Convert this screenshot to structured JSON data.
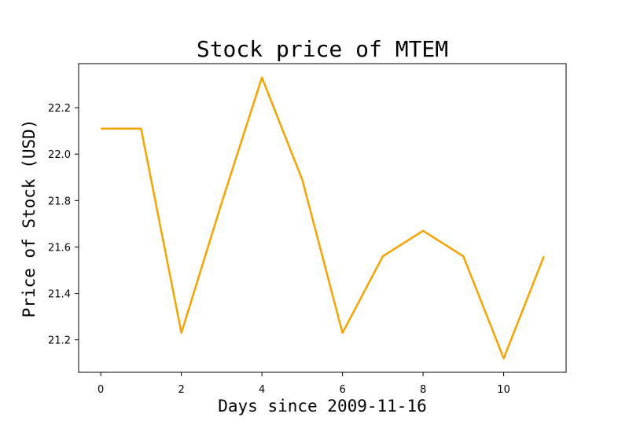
{
  "chart_data": {
    "type": "line",
    "title": "Stock price of MTEM",
    "xlabel": "Days since 2009-11-16",
    "ylabel": "Price of Stock (USD)",
    "x": [
      0,
      1,
      2,
      3,
      4,
      5,
      6,
      7,
      8,
      9,
      10,
      11
    ],
    "series": [
      {
        "values": [
          22.11,
          22.11,
          21.23,
          21.79,
          22.33,
          21.89,
          21.23,
          21.56,
          21.67,
          21.56,
          21.12,
          21.56
        ],
        "color": "#f5a300"
      }
    ],
    "xlim": [
      -0.55,
      11.55
    ],
    "ylim": [
      21.06,
      22.39
    ],
    "xticks": [
      0,
      2,
      4,
      6,
      8,
      10
    ],
    "xtick_labels": [
      "0",
      "2",
      "4",
      "6",
      "8",
      "10"
    ],
    "yticks": [
      21.2,
      21.4,
      21.6,
      21.8,
      22.0,
      22.2
    ],
    "ytick_labels": [
      "21.2",
      "21.4",
      "21.6",
      "21.8",
      "22.0",
      "22.2"
    ],
    "grid": false,
    "legend": "none"
  }
}
